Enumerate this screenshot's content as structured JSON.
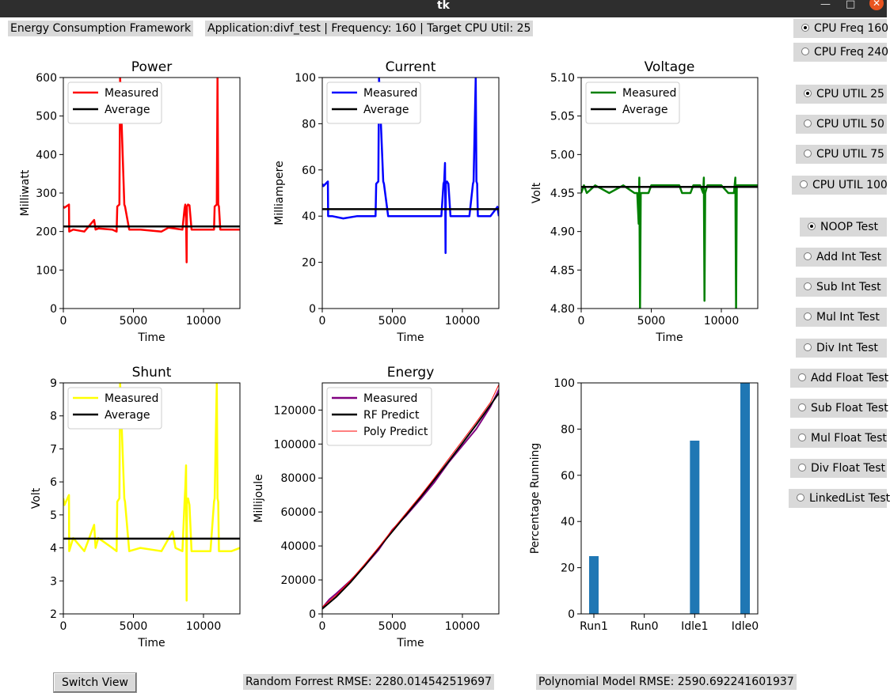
{
  "window": {
    "title": "tk",
    "minimize": "—",
    "maximize": "□",
    "close": "✕"
  },
  "header": {
    "framework_label": "Energy Consumption Framework",
    "app_info": "Application:divf_test | Frequency: 160 | Target CPU Util: 25"
  },
  "radio_groups": {
    "cpu_freq": [
      {
        "label": "CPU Freq 160",
        "selected": true
      },
      {
        "label": "CPU Freq 240",
        "selected": false
      }
    ],
    "cpu_util": [
      {
        "label": "CPU UTIL 25",
        "selected": true
      },
      {
        "label": "CPU UTIL 50",
        "selected": false
      },
      {
        "label": "CPU UTIL 75",
        "selected": false
      },
      {
        "label": "CPU UTIL 100",
        "selected": false
      }
    ],
    "tests": [
      {
        "label": "NOOP Test",
        "selected": true
      },
      {
        "label": "Add Int Test",
        "selected": false
      },
      {
        "label": "Sub Int Test",
        "selected": false
      },
      {
        "label": "Mul Int Test",
        "selected": false
      },
      {
        "label": "Div Int Test",
        "selected": false
      },
      {
        "label": "Add Float Test",
        "selected": false
      },
      {
        "label": "Sub Float Test",
        "selected": false
      },
      {
        "label": "Mul Float Test",
        "selected": false
      },
      {
        "label": "Div Float Test",
        "selected": false
      },
      {
        "label": "LinkedList Test",
        "selected": false
      }
    ]
  },
  "footer": {
    "switch_view": "Switch View",
    "rf_rmse": "Random Forrest RMSE: 2280.014542519697",
    "poly_rmse": "Polynomial Model RMSE: 2590.692241601937"
  },
  "colors": {
    "power": "#ff0000",
    "current": "#0000ff",
    "voltage": "#008000",
    "shunt": "#ffff00",
    "energy_measured": "#800080",
    "rf": "#000000",
    "poly": "#ff0000",
    "bar": "#1f77b4"
  },
  "chart_data": [
    {
      "id": "power",
      "type": "line",
      "title": "Power",
      "xlabel": "Time",
      "ylabel": "Milliwatt",
      "xlim": [
        0,
        12600
      ],
      "ylim": [
        0,
        600
      ],
      "xticks": [
        0,
        5000,
        10000
      ],
      "yticks": [
        0,
        100,
        200,
        300,
        400,
        500,
        600
      ],
      "legend": "top-left",
      "series": [
        {
          "name": "Measured",
          "color": "#ff0000",
          "x": [
            0,
            80,
            400,
            420,
            700,
            1500,
            2200,
            2300,
            2500,
            3500,
            3800,
            3850,
            4000,
            4050,
            4350,
            4400,
            4700,
            5500,
            7000,
            7500,
            8500,
            8650,
            8700,
            8760,
            8800,
            8820,
            8900,
            9000,
            9150,
            9200,
            9500,
            10500,
            10750,
            10800,
            10950,
            11000,
            11050,
            11100,
            11200,
            11250,
            11500,
            12000,
            12600
          ],
          "y": [
            265,
            262,
            270,
            200,
            205,
            200,
            230,
            205,
            208,
            205,
            200,
            265,
            270,
            600,
            270,
            265,
            205,
            205,
            200,
            210,
            205,
            260,
            270,
            235,
            120,
            265,
            270,
            268,
            205,
            205,
            205,
            205,
            205,
            265,
            270,
            600,
            270,
            265,
            205,
            205,
            205,
            205,
            205
          ]
        },
        {
          "name": "Average",
          "color": "#000000",
          "x": [
            0,
            12600
          ],
          "y": [
            213,
            213
          ]
        }
      ]
    },
    {
      "id": "current",
      "type": "line",
      "title": "Current",
      "xlabel": "Time",
      "ylabel": "Milliampere",
      "xlim": [
        0,
        12600
      ],
      "ylim": [
        0,
        100
      ],
      "xticks": [
        0,
        5000,
        10000
      ],
      "yticks": [
        0,
        20,
        40,
        60,
        80,
        100
      ],
      "legend": "top-left",
      "series": [
        {
          "name": "Measured",
          "color": "#0000ff",
          "x": [
            0,
            80,
            400,
            420,
            700,
            1500,
            2500,
            3500,
            3800,
            3850,
            4000,
            4050,
            4350,
            4400,
            4700,
            5500,
            7000,
            8500,
            8650,
            8700,
            8760,
            8800,
            8820,
            8900,
            9000,
            9150,
            9200,
            10500,
            10750,
            10800,
            10950,
            11000,
            11050,
            11100,
            11200,
            11250,
            12000,
            12500,
            12600
          ],
          "y": [
            54,
            53,
            55,
            40,
            40,
            39,
            40,
            40,
            40,
            54,
            55,
            100,
            55,
            54,
            40,
            40,
            40,
            40,
            54,
            55,
            63,
            24,
            54,
            55,
            54,
            40,
            40,
            40,
            54,
            55,
            100,
            55,
            54,
            40,
            40,
            40,
            40,
            44,
            40
          ]
        },
        {
          "name": "Average",
          "color": "#000000",
          "x": [
            0,
            12600
          ],
          "y": [
            43,
            43
          ]
        }
      ]
    },
    {
      "id": "voltage",
      "type": "line",
      "title": "Voltage",
      "xlabel": "Time",
      "ylabel": "Volt",
      "xlim": [
        0,
        12600
      ],
      "ylim": [
        4.8,
        5.1
      ],
      "xticks": [
        0,
        5000,
        10000
      ],
      "yticks": [
        4.8,
        4.85,
        4.9,
        4.95,
        5.0,
        5.05,
        5.1
      ],
      "legend": "top-left",
      "series": [
        {
          "name": "Measured",
          "color": "#008000",
          "x": [
            0,
            200,
            400,
            1000,
            2000,
            3000,
            3800,
            4000,
            4100,
            4150,
            4200,
            4250,
            4300,
            4400,
            4500,
            4800,
            5000,
            6000,
            7000,
            7200,
            7800,
            8000,
            8500,
            8700,
            8750,
            8800,
            8850,
            9000,
            10000,
            10500,
            10900,
            11000,
            11050,
            11100,
            11200,
            11400,
            12000,
            12600
          ],
          "y": [
            4.95,
            4.96,
            4.95,
            4.96,
            4.95,
            4.96,
            4.95,
            4.95,
            4.91,
            4.97,
            4.8,
            4.95,
            4.95,
            4.95,
            4.95,
            4.95,
            4.96,
            4.96,
            4.96,
            4.95,
            4.95,
            4.96,
            4.96,
            4.95,
            4.97,
            4.81,
            4.95,
            4.96,
            4.96,
            4.95,
            4.95,
            4.97,
            4.8,
            4.96,
            4.96,
            4.96,
            4.96,
            4.96
          ]
        },
        {
          "name": "Average",
          "color": "#000000",
          "x": [
            0,
            12600
          ],
          "y": [
            4.958,
            4.958
          ]
        }
      ]
    },
    {
      "id": "shunt",
      "type": "line",
      "title": "Shunt",
      "xlabel": "Time",
      "ylabel": "Volt",
      "xlim": [
        0,
        12600
      ],
      "ylim": [
        2,
        9
      ],
      "xticks": [
        0,
        5000,
        10000
      ],
      "yticks": [
        2,
        3,
        4,
        5,
        6,
        7,
        8,
        9
      ],
      "legend": "top-left",
      "series": [
        {
          "name": "Measured",
          "color": "#ffff00",
          "x": [
            0,
            80,
            400,
            420,
            700,
            1500,
            2200,
            2300,
            2500,
            3500,
            3800,
            3850,
            4000,
            4050,
            4350,
            4400,
            4700,
            5500,
            7000,
            7800,
            8000,
            8500,
            8650,
            8700,
            8760,
            8800,
            8820,
            8900,
            9000,
            9150,
            9200,
            10500,
            10750,
            10800,
            10950,
            11000,
            11050,
            11100,
            11200,
            11250,
            12000,
            12600
          ],
          "y": [
            5.5,
            5.3,
            5.6,
            3.9,
            4.3,
            3.9,
            4.7,
            4.0,
            4.3,
            4.0,
            3.9,
            5.4,
            5.5,
            9.0,
            5.5,
            5.4,
            3.9,
            4.0,
            3.9,
            4.5,
            4.0,
            3.9,
            5.4,
            5.8,
            6.5,
            2.4,
            5.4,
            5.5,
            5.3,
            3.9,
            3.9,
            3.9,
            5.4,
            5.5,
            9.0,
            5.5,
            5.4,
            3.9,
            3.9,
            3.9,
            3.9,
            4.0
          ]
        },
        {
          "name": "Average",
          "color": "#000000",
          "x": [
            0,
            12600
          ],
          "y": [
            4.28,
            4.28
          ]
        }
      ]
    },
    {
      "id": "energy",
      "type": "line",
      "title": "Energy",
      "xlabel": "Time",
      "ylabel": "Millijoule",
      "xlim": [
        0,
        12600
      ],
      "ylim": [
        0,
        136000
      ],
      "xticks": [
        0,
        5000,
        10000
      ],
      "yticks": [
        0,
        20000,
        40000,
        60000,
        80000,
        100000,
        120000
      ],
      "legend": "top-left",
      "series": [
        {
          "name": "Measured",
          "color": "#800080",
          "x": [
            0,
            500,
            1000,
            2000,
            3000,
            4000,
            5000,
            6000,
            7000,
            8000,
            9000,
            10000,
            11000,
            12000,
            12600
          ],
          "y": [
            3500,
            8500,
            12000,
            19500,
            28000,
            37500,
            49500,
            58000,
            67500,
            77500,
            89000,
            99000,
            109000,
            122000,
            132000
          ]
        },
        {
          "name": "RF Predict",
          "color": "#000000",
          "x": [
            0,
            1000,
            2000,
            3000,
            4000,
            5000,
            6000,
            7000,
            8000,
            9000,
            10000,
            11000,
            12000,
            12600
          ],
          "y": [
            3000,
            10000,
            18500,
            28000,
            38500,
            48500,
            58500,
            68500,
            79000,
            89500,
            100500,
            111500,
            123000,
            130000
          ]
        },
        {
          "name": "Poly Predict",
          "color": "#ff0000",
          "x": [
            0,
            1000,
            2000,
            3000,
            4000,
            5000,
            6000,
            7000,
            8000,
            9000,
            10000,
            11000,
            12000,
            12600
          ],
          "y": [
            4000,
            11000,
            19500,
            29000,
            39000,
            49500,
            59500,
            69500,
            80000,
            91000,
            102000,
            113000,
            124500,
            135000
          ]
        }
      ]
    },
    {
      "id": "running",
      "type": "bar",
      "title": "",
      "xlabel": "",
      "ylabel": "Percentage Running",
      "categories": [
        "Run1",
        "Run0",
        "Idle1",
        "Idle0"
      ],
      "values": [
        25,
        0,
        75,
        100
      ],
      "ylim": [
        0,
        100
      ],
      "yticks": [
        0,
        20,
        40,
        60,
        80,
        100
      ],
      "color": "#1f77b4"
    }
  ]
}
